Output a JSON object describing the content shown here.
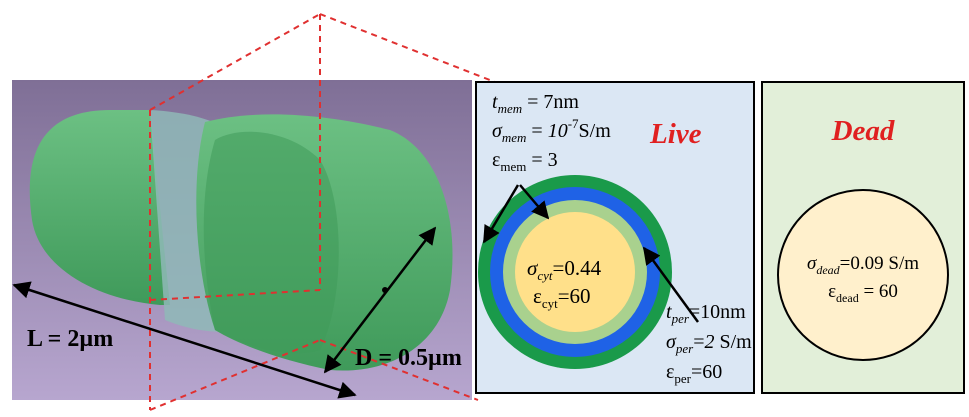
{
  "colors": {
    "render_bg_top": "#7f6f96",
    "render_bg_bottom": "#b7a6cf",
    "capsule_green": "#3f9a5a",
    "capsule_light": "#6cc083",
    "membrane_ring": "#8fb8b7",
    "panel_live_bg": "#dbe7f4",
    "panel_dead_bg": "#e2efd9",
    "outer_green": "#1a9a4a",
    "blue_ring": "#1f62e6",
    "light_green_ring": "#a9d18e",
    "cytoplasm": "#ffe08a",
    "dead_cell_fill": "#fff0cc",
    "title_red": "#e02020",
    "dashed_red": "#e03030"
  },
  "cell_model": {
    "length_label": "L = 2µm",
    "diameter_label": "D = 0.5µm"
  },
  "live_panel": {
    "title": "Live",
    "membrane": {
      "t_symbol": "t",
      "t_sub": "mem",
      "t_value": " = 7nm",
      "sigma_sub": "mem",
      "sigma_eq": " = ",
      "sigma_base": "10",
      "sigma_exp": "-7",
      "sigma_unit": "S/m",
      "eps_sub": "mem",
      "eps_value": " = 3"
    },
    "cytoplasm": {
      "sigma_sub": "cyt",
      "sigma_value": "=0.44",
      "eps_sub": "cyt",
      "eps_value": "=60"
    },
    "periplasm": {
      "t_symbol": "t",
      "t_sub": "per",
      "t_value": "=10nm",
      "sigma_sub": "per",
      "sigma_eq": "=",
      "sigma_val": "2",
      "sigma_unit": " S/m",
      "eps_sub": "per",
      "eps_value": "=60"
    }
  },
  "dead_panel": {
    "title": "Dead",
    "sigma_sub": "dead",
    "sigma_value": "=0.09 S/m",
    "eps_sub": "dead",
    "eps_value": " = 60"
  }
}
